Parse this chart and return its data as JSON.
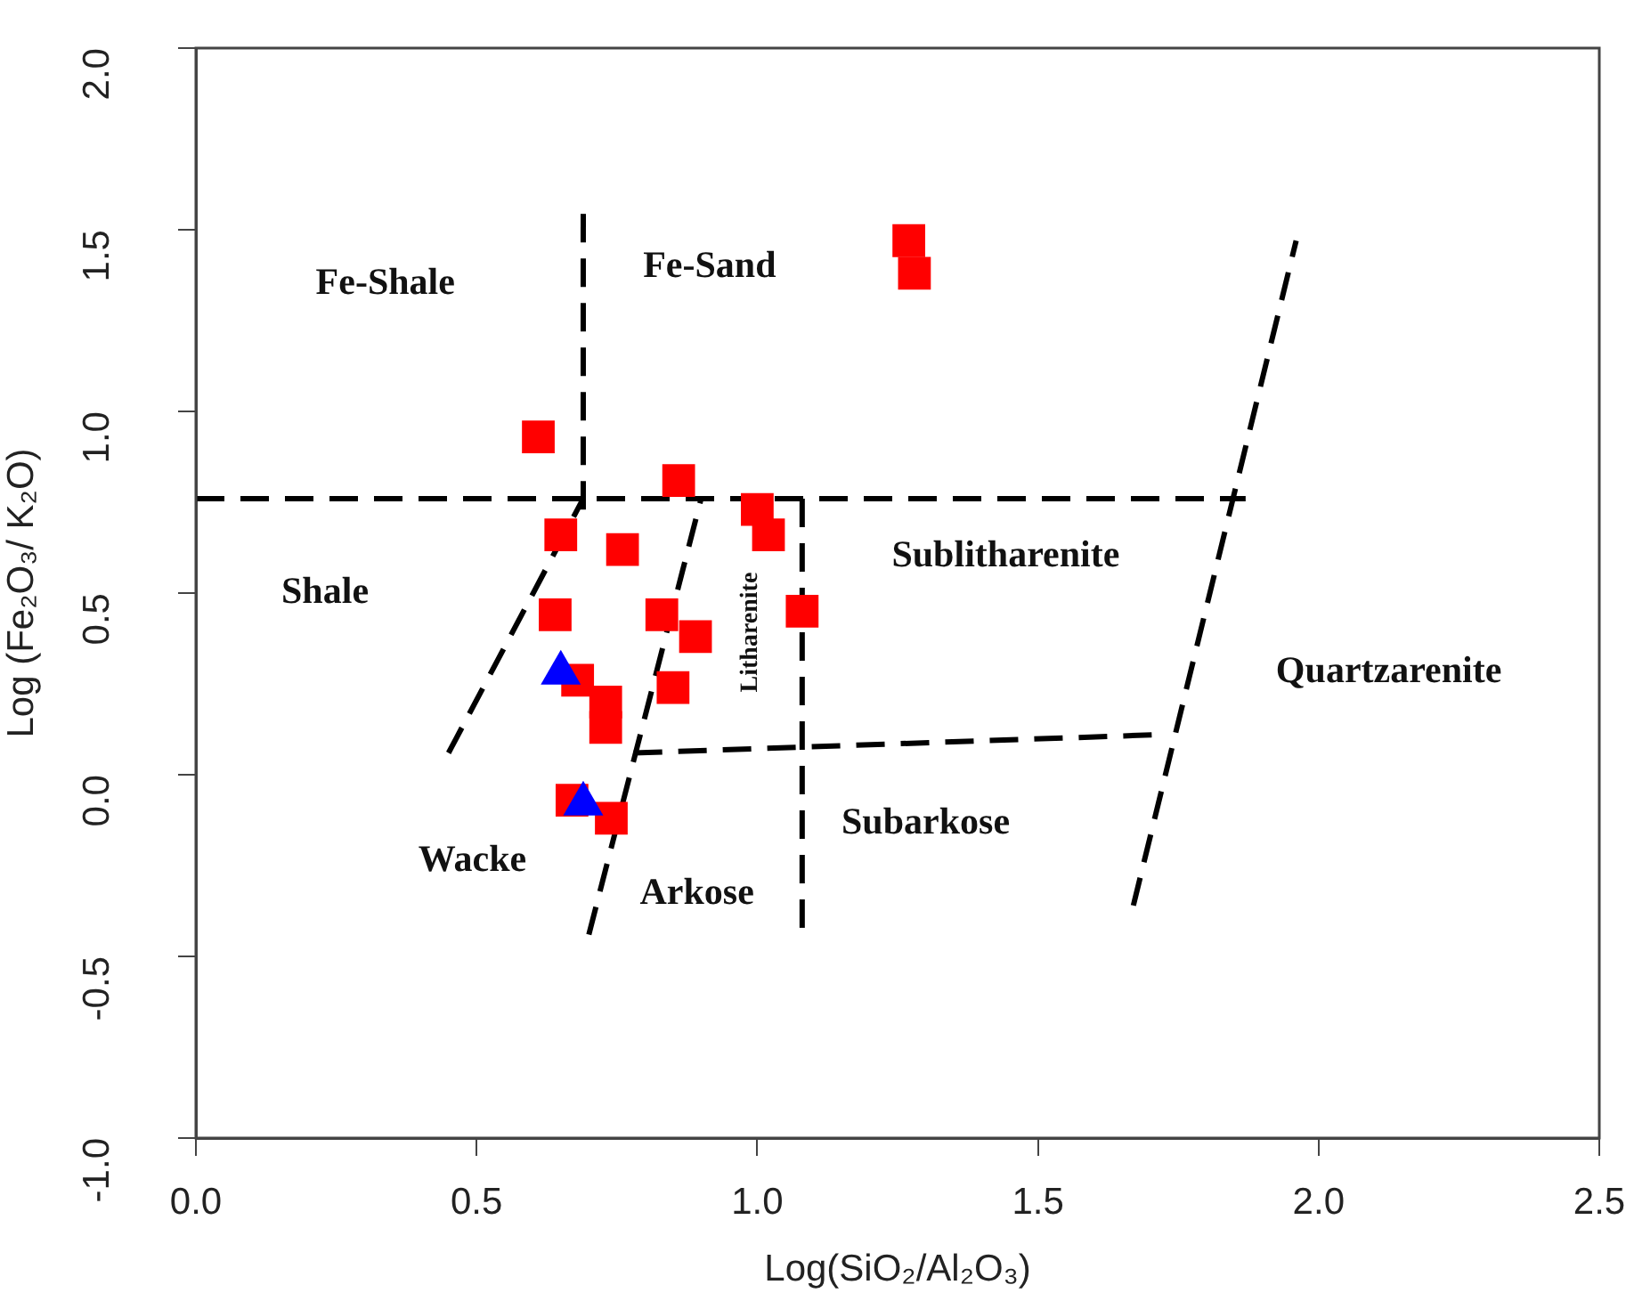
{
  "chart_data": {
    "type": "scatter",
    "xlabel": "Log(SiO₂/Al₂O₃)",
    "ylabel": "Log (Fe₂O₃/ K₂O)",
    "xlim": [
      0,
      2.5
    ],
    "ylim": [
      -1,
      2
    ],
    "xticks": [
      {
        "value": 0,
        "label": "0.0"
      },
      {
        "value": 0.5,
        "label": "0.5"
      },
      {
        "value": 1,
        "label": "1.0"
      },
      {
        "value": 1.5,
        "label": "1.5"
      },
      {
        "value": 2,
        "label": "2.0"
      },
      {
        "value": 2.5,
        "label": "2.5"
      }
    ],
    "yticks": [
      {
        "value": -1,
        "label": "-1.0"
      },
      {
        "value": -0.5,
        "label": "-0.5"
      },
      {
        "value": 0,
        "label": "0.0"
      },
      {
        "value": 0.5,
        "label": "0.5"
      },
      {
        "value": 1,
        "label": "1.0"
      },
      {
        "value": 1.5,
        "label": "1.5"
      },
      {
        "value": 2,
        "label": "2.0"
      }
    ],
    "grid": false,
    "legend": false,
    "series": [
      {
        "type": "line",
        "color": "#000000",
        "marker": "none",
        "line_style": "dashed",
        "x": [
          0,
          1.87
        ],
        "values": [
          0.76,
          0.76
        ]
      },
      {
        "type": "line",
        "color": "#000000",
        "marker": "none",
        "line_style": "dashed",
        "x": [
          0.69,
          0.69
        ],
        "values": [
          0.73,
          1.56
        ]
      },
      {
        "type": "line",
        "color": "#000000",
        "marker": "none",
        "line_style": "dashed",
        "x": [
          0.45,
          0.69
        ],
        "values": [
          0.06,
          0.76
        ]
      },
      {
        "type": "line",
        "color": "#000000",
        "marker": "none",
        "line_style": "dashed",
        "x": [
          0.7,
          0.9
        ],
        "values": [
          -0.44,
          0.76
        ]
      },
      {
        "type": "line",
        "color": "#000000",
        "marker": "none",
        "line_style": "dashed",
        "x": [
          1.08,
          1.08
        ],
        "values": [
          0.76,
          -0.43
        ]
      },
      {
        "type": "line",
        "color": "#000000",
        "marker": "none",
        "line_style": "dashed",
        "x": [
          0.78,
          1.71
        ],
        "values": [
          0.06,
          0.11
        ]
      },
      {
        "type": "line",
        "color": "#000000",
        "marker": "none",
        "line_style": "dashed",
        "x": [
          1.67,
          1.96
        ],
        "values": [
          -0.36,
          1.47
        ]
      },
      {
        "type": "scatter",
        "color": "#ff0000",
        "marker": "square",
        "x": [
          0.61,
          0.86,
          0.65,
          0.76,
          0.64,
          0.83,
          0.89,
          1.0,
          1.02,
          1.08,
          0.85,
          0.68,
          0.73,
          0.73,
          0.67,
          0.74,
          1.27,
          1.28
        ],
        "values": [
          0.93,
          0.81,
          0.66,
          0.62,
          0.44,
          0.44,
          0.38,
          0.73,
          0.66,
          0.45,
          0.24,
          0.26,
          0.2,
          0.13,
          -0.07,
          -0.12,
          1.47,
          1.38
        ]
      },
      {
        "type": "scatter",
        "color": "#0000ff",
        "marker": "triangle",
        "x": [
          0.65,
          0.69
        ],
        "values": [
          0.28,
          -0.08
        ]
      }
    ],
    "annotations": [
      "Fe-Shale",
      "Fe-Sand",
      "Shale",
      "Litharenite",
      "Sublitharenite",
      "Quartzarenite",
      "Subarkose",
      "Wacke",
      "Arkose"
    ]
  }
}
